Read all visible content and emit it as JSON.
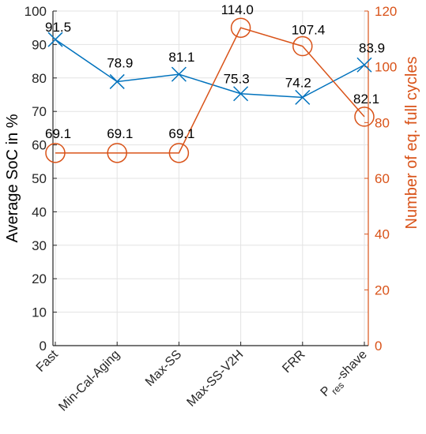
{
  "chart_data": {
    "type": "line",
    "categories": [
      "Fast",
      "Min-Cal-Aging",
      "Max-SS",
      "Max-SS-V2H",
      "FRR",
      "P_res-shave"
    ],
    "category_display": [
      {
        "main": "Fast"
      },
      {
        "main": "Min-Cal-Aging"
      },
      {
        "main": "Max-SS"
      },
      {
        "main": "Max-SS-V2H"
      },
      {
        "main": "FRR"
      },
      {
        "main": "P",
        "sub": "res",
        "rest": "-shave"
      }
    ],
    "series": [
      {
        "axis": "left",
        "marker": "x",
        "color": "#0072BD",
        "values": [
          91.5,
          78.9,
          81.1,
          75.3,
          74.2,
          83.9
        ],
        "value_labels": [
          "91.5",
          "78.9",
          "81.1",
          "75.3",
          "74.2",
          "83.9"
        ]
      },
      {
        "axis": "right",
        "marker": "circle",
        "color": "#D95319",
        "values": [
          69.1,
          69.1,
          69.1,
          114.0,
          107.4,
          82.1
        ],
        "value_labels": [
          "69.1",
          "69.1",
          "69.1",
          "114.0",
          "107.4",
          "82.1"
        ]
      }
    ],
    "ylabel": "Average SoC in %",
    "ylabel_right": "Number of eq. full cycles",
    "ylim": [
      0,
      100
    ],
    "ylim_right": [
      0,
      120
    ],
    "yticks": [
      0,
      10,
      20,
      30,
      40,
      50,
      60,
      70,
      80,
      90,
      100
    ],
    "yticks_right": [
      0,
      20,
      40,
      60,
      80,
      100,
      120
    ],
    "grid": true,
    "colors": {
      "left_axis": "#262626",
      "right_axis": "#D95319",
      "grid": "#e3e3e3"
    }
  }
}
